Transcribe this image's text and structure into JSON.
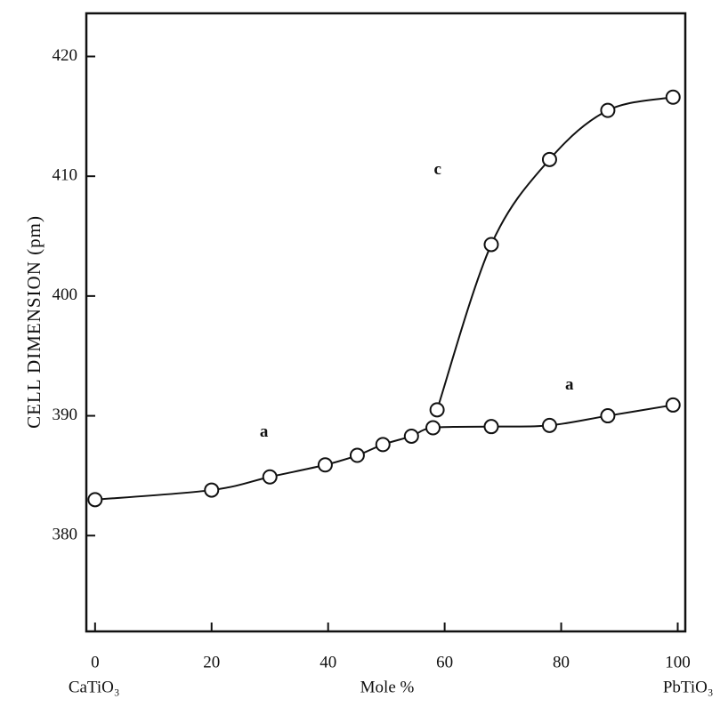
{
  "chart_data": {
    "type": "line",
    "y_label": "CELL DIMENSION (pm)",
    "x_label": "Mole %",
    "x_end_labels": [
      "CaTiO₃",
      "PbTiO₃"
    ],
    "xlim": [
      -1.5,
      101.3
    ],
    "xticks": [
      0,
      20,
      40,
      60,
      80,
      100
    ],
    "ylim": [
      372,
      423.6
    ],
    "yticks": [
      380,
      390,
      400,
      410,
      420
    ],
    "color": "#111111",
    "series": [
      {
        "name": "a",
        "label_at": [
          [
            29,
            388.6
          ],
          [
            81.4,
            392.5
          ]
        ],
        "x": [
          0,
          20,
          30,
          39.5,
          45,
          49.4,
          54.3,
          58,
          68,
          78,
          88,
          99.2
        ],
        "values": [
          383.0,
          383.8,
          384.9,
          385.9,
          386.7,
          387.6,
          388.3,
          389.0,
          389.1,
          389.2,
          390.0,
          390.9
        ]
      },
      {
        "name": "c",
        "label_at": [
          [
            58.8,
            410.5
          ]
        ],
        "x": [
          58.7,
          68,
          78,
          88,
          99.2
        ],
        "values": [
          390.5,
          404.3,
          411.4,
          415.5,
          416.6
        ]
      }
    ]
  }
}
